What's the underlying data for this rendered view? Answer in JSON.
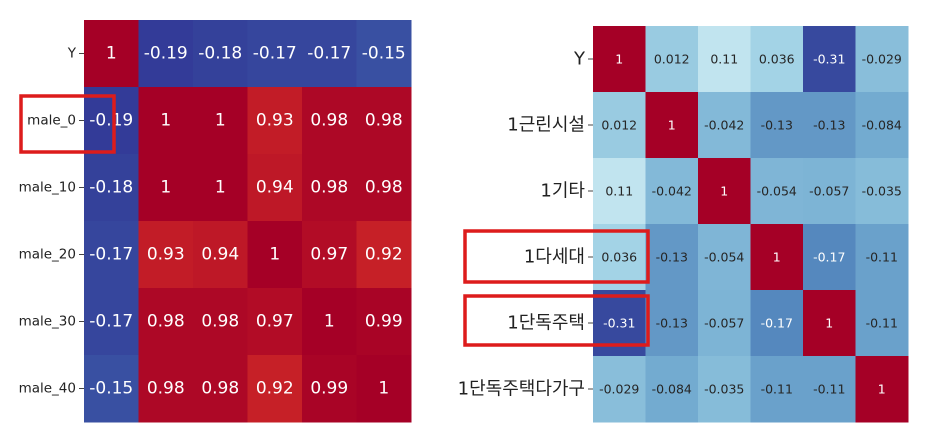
{
  "chart_data": [
    {
      "type": "heatmap",
      "title": "",
      "row_labels": [
        "Y",
        "male_0",
        "male_10",
        "male_20",
        "male_30",
        "male_40"
      ],
      "col_labels": [],
      "values": [
        [
          1,
          -0.19,
          -0.18,
          -0.17,
          -0.17,
          -0.15
        ],
        [
          -0.19,
          1,
          1,
          0.93,
          0.98,
          0.98
        ],
        [
          -0.18,
          1,
          1,
          0.94,
          0.98,
          0.98
        ],
        [
          -0.17,
          0.93,
          0.94,
          1,
          0.97,
          0.92
        ],
        [
          -0.17,
          0.98,
          0.98,
          0.97,
          1,
          0.99
        ],
        [
          -0.15,
          0.98,
          0.98,
          0.92,
          0.99,
          1
        ]
      ],
      "highlighted_rows": [
        "male_0"
      ],
      "colormap": "RdYlBu_r"
    },
    {
      "type": "heatmap",
      "title": "",
      "row_labels": [
        "Y",
        "1근린시설",
        "1기타",
        "1다세대",
        "1단독주택",
        "1단독주택다가구"
      ],
      "col_labels": [],
      "values": [
        [
          1,
          0.012,
          0.11,
          0.036,
          -0.31,
          -0.029
        ],
        [
          0.012,
          1,
          -0.042,
          -0.13,
          -0.13,
          -0.084
        ],
        [
          0.11,
          -0.042,
          1,
          -0.054,
          -0.057,
          -0.035
        ],
        [
          0.036,
          -0.13,
          -0.054,
          1,
          -0.17,
          -0.11
        ],
        [
          -0.31,
          -0.13,
          -0.057,
          -0.17,
          1,
          -0.11
        ],
        [
          -0.029,
          -0.084,
          -0.035,
          -0.11,
          -0.11,
          1
        ]
      ],
      "highlighted_rows": [
        "1다세대",
        "1단독주택"
      ],
      "colormap": "RdYlBu_r"
    }
  ],
  "colors": {
    "highlight_box": "#dd1c1c",
    "diag": "#a50026"
  }
}
